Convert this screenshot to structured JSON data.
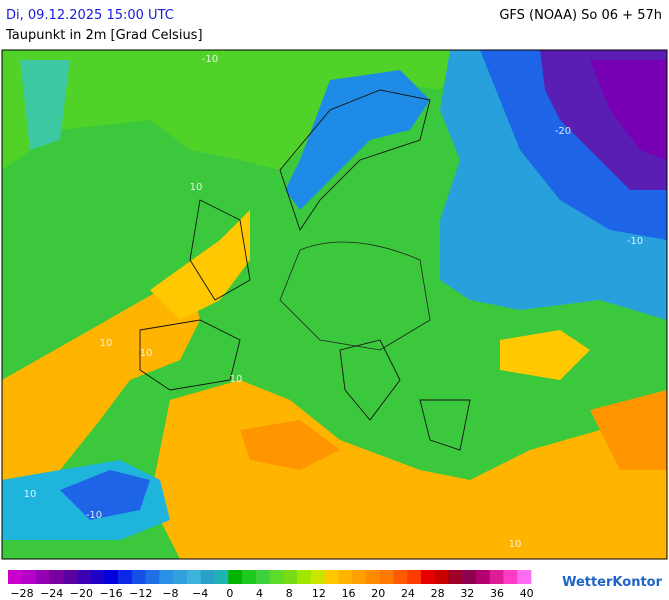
{
  "header": {
    "datetime": "Di, 09.12.2025 15:00 UTC",
    "model": "GFS (NOAA) So 06 + 57h",
    "title": "Taupunkt in 2m [Grad Celsius]"
  },
  "contour_labels": [
    "-10",
    "-20",
    "-10",
    "10",
    "10",
    "10",
    "10",
    "-10",
    "10",
    "10"
  ],
  "colorbar": {
    "labels": [
      "−28",
      "−24",
      "−20",
      "−16",
      "−12",
      "−8",
      "−4",
      "0",
      "4",
      "8",
      "12",
      "16",
      "20",
      "24",
      "28",
      "32",
      "36",
      "40"
    ],
    "colors": [
      "#cc00cc",
      "#b400c8",
      "#9600b4",
      "#7800a0",
      "#5a00a0",
      "#3c00b4",
      "#1e00c8",
      "#0000dc",
      "#0a28e6",
      "#1450e6",
      "#1e6ee6",
      "#2890e6",
      "#32a0dc",
      "#3cb4dc",
      "#28a0c8",
      "#1eb4b4",
      "#00b400",
      "#1ec81e",
      "#3cd23c",
      "#5adc28",
      "#78dc14",
      "#a0e600",
      "#c8e600",
      "#ffc800",
      "#ffb400",
      "#ffa000",
      "#ff8c00",
      "#ff7800",
      "#ff5a00",
      "#ff3c00",
      "#e60000",
      "#c80000",
      "#a00028",
      "#8c0050",
      "#b4006e",
      "#dc1e96",
      "#ff3cc8",
      "#ff6ef0"
    ]
  },
  "logo": "WetterKontor"
}
